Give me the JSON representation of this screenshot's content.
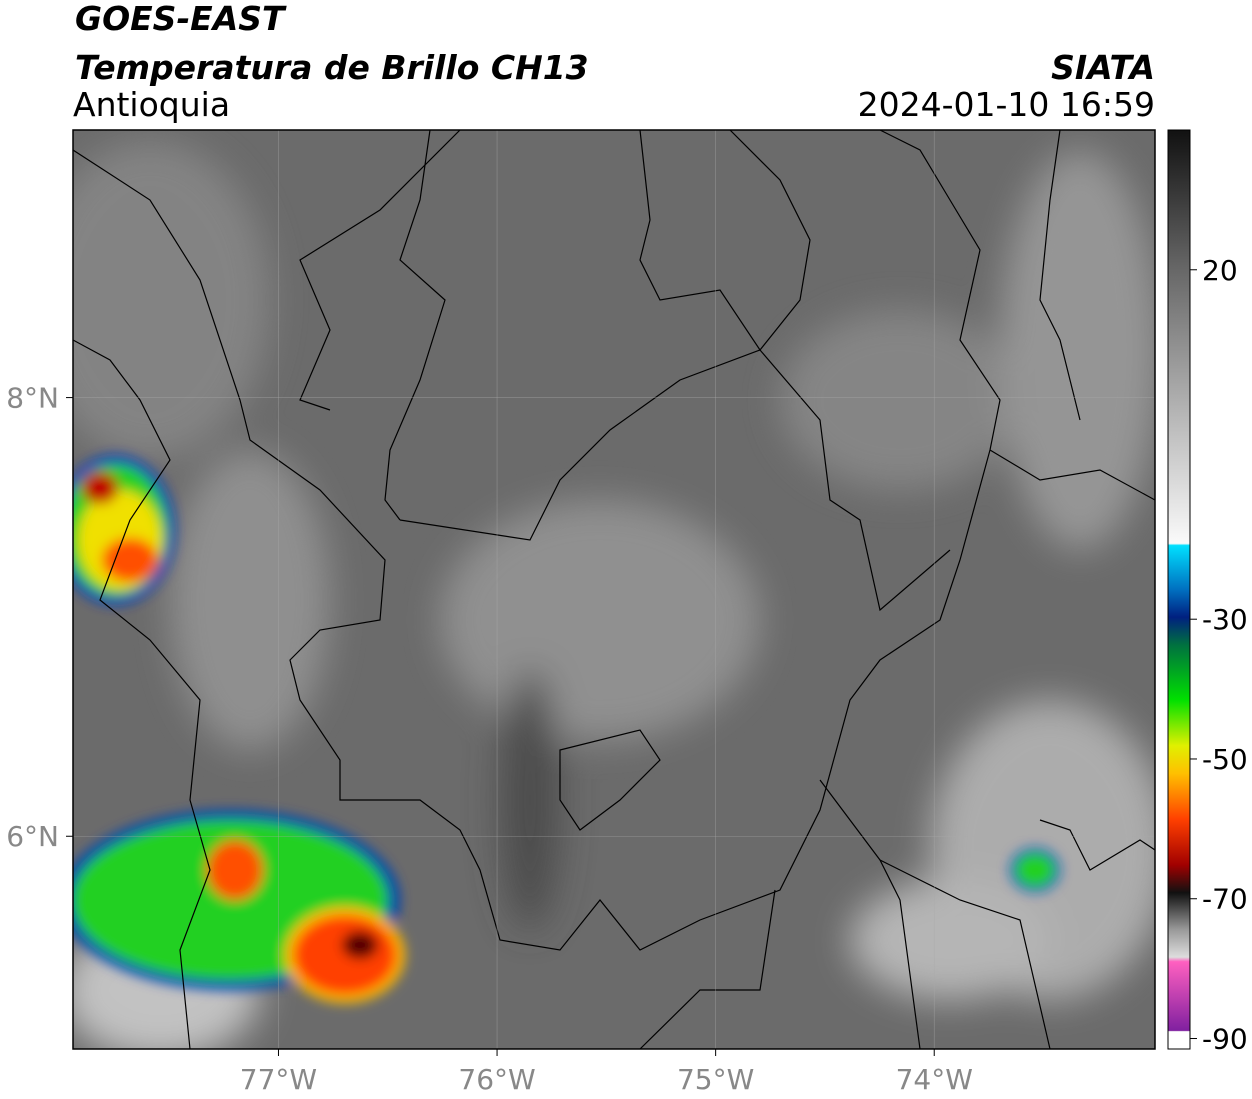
{
  "title": "GOES-EAST",
  "subtitle": "Temperatura de Brillo CH13",
  "region": "Antioquia",
  "source": "SIATA",
  "datetime": "2024-01-10 16:59",
  "map": {
    "xlim": [
      -77.94,
      -72.99
    ],
    "ylim": [
      5.03,
      9.22
    ],
    "xticks": [
      {
        "value": -77,
        "label": "77°W"
      },
      {
        "value": -76,
        "label": "76°W"
      },
      {
        "value": -75,
        "label": "75°W"
      },
      {
        "value": -74,
        "label": "74°W"
      }
    ],
    "yticks": [
      {
        "value": 6,
        "label": "6°N"
      },
      {
        "value": 8,
        "label": "8°N"
      }
    ],
    "grid": true
  },
  "colorbar": {
    "clim": [
      -91.5,
      40
    ],
    "ticks": [
      20,
      -30,
      -50,
      -70,
      -90
    ]
  }
}
